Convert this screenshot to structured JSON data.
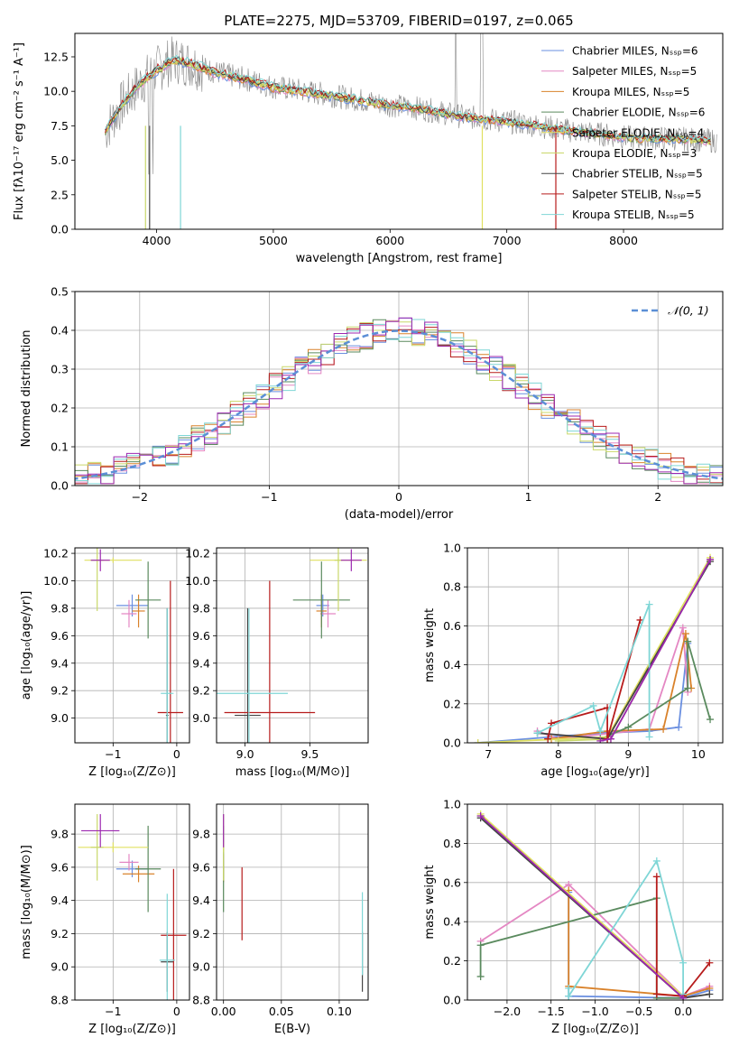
{
  "figure_title": "PLATE=2275, MJD=53709, FIBERID=0197, z=0.065",
  "colors": {
    "grid": "#b0b0b0",
    "series": [
      "#6a8fe0",
      "#e487c3",
      "#d9822b",
      "#5a8a5e",
      "#e0e060",
      "#c9d86a",
      "#444444",
      "#b71c1c",
      "#7fd6d6"
    ],
    "extra": "#9c27b0",
    "normal": "#5b8fd6"
  },
  "chart_data": [
    {
      "type": "line",
      "title": "PLATE=2275, MJD=53709, FIBERID=0197, z=0.065",
      "xlabel": "wavelength [Angstrom, rest frame]",
      "ylabel": "Flux [fλ10⁻¹⁷ erg cm⁻² s⁻¹ A⁻¹]",
      "xlim": [
        3300,
        8850
      ],
      "ylim": [
        0,
        14.2
      ],
      "xticks": [
        4000,
        5000,
        6000,
        7000,
        8000
      ],
      "yticks": [
        0.0,
        2.5,
        5.0,
        7.5,
        10.0,
        12.5
      ],
      "grid": false,
      "legend_position": "top-right",
      "legend": [
        "Chabrier MILES, N_SSP=6",
        "Salpeter MILES, N_SSP=5",
        "Kroupa MILES, N_SSP=5",
        "Chabrier ELODIE, N_SSP=6",
        "Salpeter ELODIE, N_SSP=4",
        "Kroupa ELODIE, N_SSP=3",
        "Chabrier STELIB, N_SSP=5",
        "Salpeter STELIB, N_SSP=5",
        "Kroupa STELIB, N_SSP=5"
      ],
      "continuum": [
        [
          3550,
          7.0
        ],
        [
          3700,
          9.0
        ],
        [
          3850,
          10.5
        ],
        [
          4000,
          11.6
        ],
        [
          4150,
          12.3
        ],
        [
          4300,
          12.0
        ],
        [
          4500,
          11.4
        ],
        [
          4700,
          11.0
        ],
        [
          4850,
          10.7
        ],
        [
          5000,
          10.3
        ],
        [
          5200,
          10.1
        ],
        [
          5500,
          9.7
        ],
        [
          5800,
          9.3
        ],
        [
          6000,
          9.0
        ],
        [
          6300,
          8.7
        ],
        [
          6600,
          8.2
        ],
        [
          6900,
          7.9
        ],
        [
          7200,
          7.6
        ],
        [
          7500,
          7.2
        ],
        [
          7800,
          6.9
        ],
        [
          8100,
          6.6
        ],
        [
          8400,
          6.6
        ],
        [
          8800,
          6.4
        ]
      ]
    },
    {
      "type": "bar",
      "subtype": "step-histogram",
      "xlabel": "(data-model)/error",
      "ylabel": "Normed distribution",
      "xlim": [
        -2.5,
        2.5
      ],
      "ylim": [
        0,
        0.5
      ],
      "xticks": [
        -2,
        -1,
        0,
        1,
        2
      ],
      "yticks": [
        0.0,
        0.1,
        0.2,
        0.3,
        0.4,
        0.5
      ],
      "grid": true,
      "legend_position": "top-right",
      "legend": [
        "𝒩(0, 1)"
      ],
      "curve": "standard normal density"
    },
    {
      "type": "scatter",
      "subtype": "errorbar",
      "xlabel": "Z [log₁₀(Z/Z⊙)]",
      "ylabel": "age  [log₁₀(age/yr)]",
      "xlim": [
        -1.6,
        0.2
      ],
      "ylim": [
        8.82,
        10.24
      ],
      "xticks": [
        -1,
        0
      ],
      "yticks": [
        9.0,
        9.2,
        9.4,
        9.6,
        9.8,
        10.0,
        10.2
      ],
      "grid": true,
      "points": [
        {
          "x": -0.7,
          "y": 9.82,
          "xerr": 0.25,
          "yerr": 0.08,
          "series": 0
        },
        {
          "x": -0.75,
          "y": 9.76,
          "xerr": 0.12,
          "yerr": 0.1,
          "series": 1
        },
        {
          "x": -0.6,
          "y": 9.78,
          "xerr": 0.1,
          "yerr": 0.12,
          "series": 2
        },
        {
          "x": -0.45,
          "y": 9.86,
          "xerr": 0.2,
          "yerr": 0.28,
          "series": 3
        },
        {
          "x": -1.0,
          "y": 10.15,
          "xerr": 0.45,
          "yerr": 0.02,
          "series": 4
        },
        {
          "x": -1.25,
          "y": 10.15,
          "xerr": 0.1,
          "yerr": 0.37,
          "series": 5
        },
        {
          "x": -0.15,
          "y": 9.02,
          "xerr": 0.02,
          "yerr": 0.78,
          "series": 6
        },
        {
          "x": -0.1,
          "y": 9.04,
          "xerr": 0.2,
          "yerr": 0.96,
          "series": 7
        },
        {
          "x": -0.15,
          "y": 9.18,
          "xerr": 0.1,
          "yerr": 0.62,
          "series": 8
        },
        {
          "x": -1.2,
          "y": 10.15,
          "xerr": 0.15,
          "yerr": 0.08,
          "series": 9
        }
      ]
    },
    {
      "type": "scatter",
      "subtype": "errorbar",
      "xlabel": "mass [log₁₀(M/M⊙)]",
      "xlim": [
        8.78,
        9.95
      ],
      "ylim": [
        8.82,
        10.24
      ],
      "xticks": [
        9.0,
        9.5
      ],
      "yticks": [
        9.0,
        9.2,
        9.4,
        9.6,
        9.8,
        10.0,
        10.2
      ],
      "grid": true,
      "points": [
        {
          "x": 9.6,
          "y": 9.82,
          "xerr": 0.05,
          "yerr": 0.08,
          "series": 0
        },
        {
          "x": 9.64,
          "y": 9.76,
          "xerr": 0.06,
          "yerr": 0.1,
          "series": 1
        },
        {
          "x": 9.59,
          "y": 9.78,
          "xerr": 0.04,
          "yerr": 0.12,
          "series": 2
        },
        {
          "x": 9.59,
          "y": 9.86,
          "xerr": 0.22,
          "yerr": 0.28,
          "series": 3
        },
        {
          "x": 9.72,
          "y": 10.15,
          "xerr": 0.22,
          "yerr": 0.02,
          "series": 4
        },
        {
          "x": 9.72,
          "y": 10.15,
          "xerr": 0.03,
          "yerr": 0.37,
          "series": 5
        },
        {
          "x": 9.02,
          "y": 9.02,
          "xerr": 0.1,
          "yerr": 0.78,
          "series": 6
        },
        {
          "x": 9.19,
          "y": 9.04,
          "xerr": 0.35,
          "yerr": 0.96,
          "series": 7
        },
        {
          "x": 9.03,
          "y": 9.18,
          "xerr": 0.3,
          "yerr": 0.62,
          "series": 8
        },
        {
          "x": 9.82,
          "y": 10.15,
          "xerr": 0.08,
          "yerr": 0.08,
          "series": 9
        }
      ]
    },
    {
      "type": "line",
      "xlabel": "age  [log₁₀(age/yr)]",
      "ylabel": "mass weight",
      "xlim": [
        6.7,
        10.35
      ],
      "ylim": [
        0,
        1.0
      ],
      "xticks": [
        7,
        8,
        9,
        10
      ],
      "yticks": [
        0.0,
        0.2,
        0.4,
        0.6,
        0.8,
        1.0
      ],
      "grid": true,
      "series": [
        {
          "series": 0,
          "points": [
            [
              6.85,
              0.0
            ],
            [
              8.6,
              0.05
            ],
            [
              9.3,
              0.06
            ],
            [
              9.72,
              0.08
            ],
            [
              9.85,
              0.51
            ]
          ]
        },
        {
          "series": 1,
          "points": [
            [
              7.7,
              0.06
            ],
            [
              8.0,
              0.02
            ],
            [
              9.3,
              0.07
            ],
            [
              9.78,
              0.59
            ],
            [
              9.85,
              0.26
            ]
          ]
        },
        {
          "series": 2,
          "points": [
            [
              7.9,
              0.02
            ],
            [
              8.7,
              0.06
            ],
            [
              9.5,
              0.07
            ],
            [
              9.82,
              0.56
            ],
            [
              9.9,
              0.28
            ]
          ]
        },
        {
          "series": 3,
          "points": [
            [
              8.6,
              0.02
            ],
            [
              9.0,
              0.08
            ],
            [
              9.85,
              0.28
            ],
            [
              9.85,
              0.52
            ],
            [
              10.17,
              0.12
            ]
          ]
        },
        {
          "series": 4,
          "points": [
            [
              6.85,
              0.0
            ],
            [
              8.7,
              0.03
            ],
            [
              10.17,
              0.95
            ]
          ]
        },
        {
          "series": 5,
          "points": [
            [
              8.0,
              0.01
            ],
            [
              8.75,
              0.02
            ],
            [
              10.17,
              0.94
            ]
          ]
        },
        {
          "series": 6,
          "points": [
            [
              7.7,
              0.05
            ],
            [
              8.7,
              0.02
            ],
            [
              10.17,
              0.93
            ]
          ]
        },
        {
          "series": 7,
          "points": [
            [
              7.85,
              0.02
            ],
            [
              7.9,
              0.1
            ],
            [
              8.7,
              0.18
            ],
            [
              8.7,
              0.02
            ],
            [
              9.17,
              0.63
            ]
          ]
        },
        {
          "series": 8,
          "points": [
            [
              7.7,
              0.05
            ],
            [
              8.5,
              0.19
            ],
            [
              8.6,
              0.06
            ],
            [
              9.3,
              0.71
            ],
            [
              9.3,
              0.03
            ]
          ]
        },
        {
          "series": 9,
          "points": [
            [
              8.6,
              0.01
            ],
            [
              8.75,
              0.02
            ],
            [
              10.17,
              0.94
            ]
          ]
        }
      ]
    },
    {
      "type": "scatter",
      "subtype": "errorbar",
      "xlabel": "Z [log₁₀(Z/Z⊙)]",
      "ylabel": "mass [log₁₀(M/M⊙)]",
      "xlim": [
        -1.6,
        0.2
      ],
      "ylim": [
        8.8,
        9.98
      ],
      "xticks": [
        -1,
        0
      ],
      "yticks": [
        8.8,
        9.0,
        9.2,
        9.4,
        9.6,
        9.8
      ],
      "grid": true,
      "points": [
        {
          "x": -0.7,
          "y": 9.59,
          "xerr": 0.25,
          "yerr": 0.05,
          "series": 0
        },
        {
          "x": -0.75,
          "y": 9.63,
          "xerr": 0.15,
          "yerr": 0.05,
          "series": 1
        },
        {
          "x": -0.6,
          "y": 9.56,
          "xerr": 0.25,
          "yerr": 0.05,
          "series": 2
        },
        {
          "x": -0.45,
          "y": 9.59,
          "xerr": 0.2,
          "yerr": 0.26,
          "series": 3
        },
        {
          "x": -1.0,
          "y": 9.72,
          "xerr": 0.55,
          "yerr": 0.03,
          "series": 4
        },
        {
          "x": -1.25,
          "y": 9.72,
          "xerr": 0.1,
          "yerr": 0.2,
          "series": 5
        },
        {
          "x": -0.15,
          "y": 9.03,
          "xerr": 0.1,
          "yerr": 0.18,
          "series": 6
        },
        {
          "x": -0.05,
          "y": 9.19,
          "xerr": 0.2,
          "yerr": 0.4,
          "series": 7
        },
        {
          "x": -0.15,
          "y": 9.04,
          "xerr": 0.12,
          "yerr": 0.4,
          "series": 8
        },
        {
          "x": -1.2,
          "y": 9.82,
          "xerr": 0.3,
          "yerr": 0.1,
          "series": 9
        }
      ]
    },
    {
      "type": "scatter",
      "subtype": "errorbar",
      "xlabel": "E(B-V)",
      "xlim": [
        -0.006,
        0.125
      ],
      "ylim": [
        8.8,
        9.98
      ],
      "xticks": [
        0.0,
        0.05,
        0.1
      ],
      "yticks": [
        8.8,
        9.0,
        9.2,
        9.4,
        9.6,
        9.8
      ],
      "grid": true,
      "points": [
        {
          "x": 0.0,
          "y": 9.59,
          "xerr": 0,
          "yerr": 0.05,
          "series": 0
        },
        {
          "x": 0.0,
          "y": 9.63,
          "xerr": 0,
          "yerr": 0.05,
          "series": 1
        },
        {
          "x": 0.0,
          "y": 9.56,
          "xerr": 0,
          "yerr": 0.05,
          "series": 2
        },
        {
          "x": 0.0,
          "y": 9.59,
          "xerr": 0,
          "yerr": 0.26,
          "series": 3
        },
        {
          "x": 0.0,
          "y": 9.72,
          "xerr": 0,
          "yerr": 0.03,
          "series": 4
        },
        {
          "x": 0.0,
          "y": 9.72,
          "xerr": 0,
          "yerr": 0.2,
          "series": 5
        },
        {
          "x": 0.12,
          "y": 9.03,
          "xerr": 0,
          "yerr": 0.18,
          "series": 6
        },
        {
          "x": 0.016,
          "y": 9.38,
          "xerr": 0,
          "yerr": 0.22,
          "series": 7
        },
        {
          "x": 0.12,
          "y": 9.2,
          "xerr": 0,
          "yerr": 0.25,
          "series": 8
        },
        {
          "x": 0.0,
          "y": 9.82,
          "xerr": 0,
          "yerr": 0.1,
          "series": 9
        }
      ]
    },
    {
      "type": "line",
      "xlabel": "Z [log₁₀(Z/Z⊙)]",
      "ylabel": "mass weight",
      "xlim": [
        -2.45,
        0.45
      ],
      "ylim": [
        0,
        1.0
      ],
      "xticks": [
        -2.0,
        -1.5,
        -1.0,
        -0.5,
        0.0
      ],
      "yticks": [
        0.0,
        0.2,
        0.4,
        0.6,
        0.8,
        1.0
      ],
      "grid": true,
      "series": [
        {
          "series": 0,
          "points": [
            [
              -1.3,
              0.55
            ],
            [
              -1.3,
              0.02
            ],
            [
              0.0,
              0.01
            ],
            [
              0.3,
              0.05
            ]
          ]
        },
        {
          "series": 1,
          "points": [
            [
              -2.3,
              0.3
            ],
            [
              -1.3,
              0.59
            ],
            [
              0.0,
              0.02
            ],
            [
              0.3,
              0.07
            ]
          ]
        },
        {
          "series": 2,
          "points": [
            [
              -1.3,
              0.56
            ],
            [
              -1.3,
              0.07
            ],
            [
              0.0,
              0.02
            ],
            [
              0.3,
              0.06
            ]
          ]
        },
        {
          "series": 3,
          "points": [
            [
              -2.3,
              0.12
            ],
            [
              -2.3,
              0.28
            ],
            [
              -0.3,
              0.52
            ],
            [
              -0.3,
              0.01
            ],
            [
              0.0,
              0.01
            ]
          ]
        },
        {
          "series": 4,
          "points": [
            [
              -2.3,
              0.95
            ],
            [
              0.0,
              0.02
            ]
          ]
        },
        {
          "series": 5,
          "points": [
            [
              -2.3,
              0.94
            ],
            [
              0.0,
              0.01
            ]
          ]
        },
        {
          "series": 6,
          "points": [
            [
              -2.3,
              0.93
            ],
            [
              0.0,
              0.01
            ],
            [
              0.3,
              0.03
            ]
          ]
        },
        {
          "series": 7,
          "points": [
            [
              -0.3,
              0.63
            ],
            [
              -0.3,
              0.03
            ],
            [
              0.0,
              0.02
            ],
            [
              0.3,
              0.19
            ]
          ]
        },
        {
          "series": 8,
          "points": [
            [
              -1.3,
              0.06
            ],
            [
              -1.3,
              0.02
            ],
            [
              -0.3,
              0.71
            ],
            [
              0.0,
              0.19
            ],
            [
              0.0,
              0.03
            ]
          ]
        },
        {
          "series": 9,
          "points": [
            [
              -2.3,
              0.94
            ],
            [
              0.0,
              0.01
            ]
          ]
        }
      ]
    }
  ]
}
